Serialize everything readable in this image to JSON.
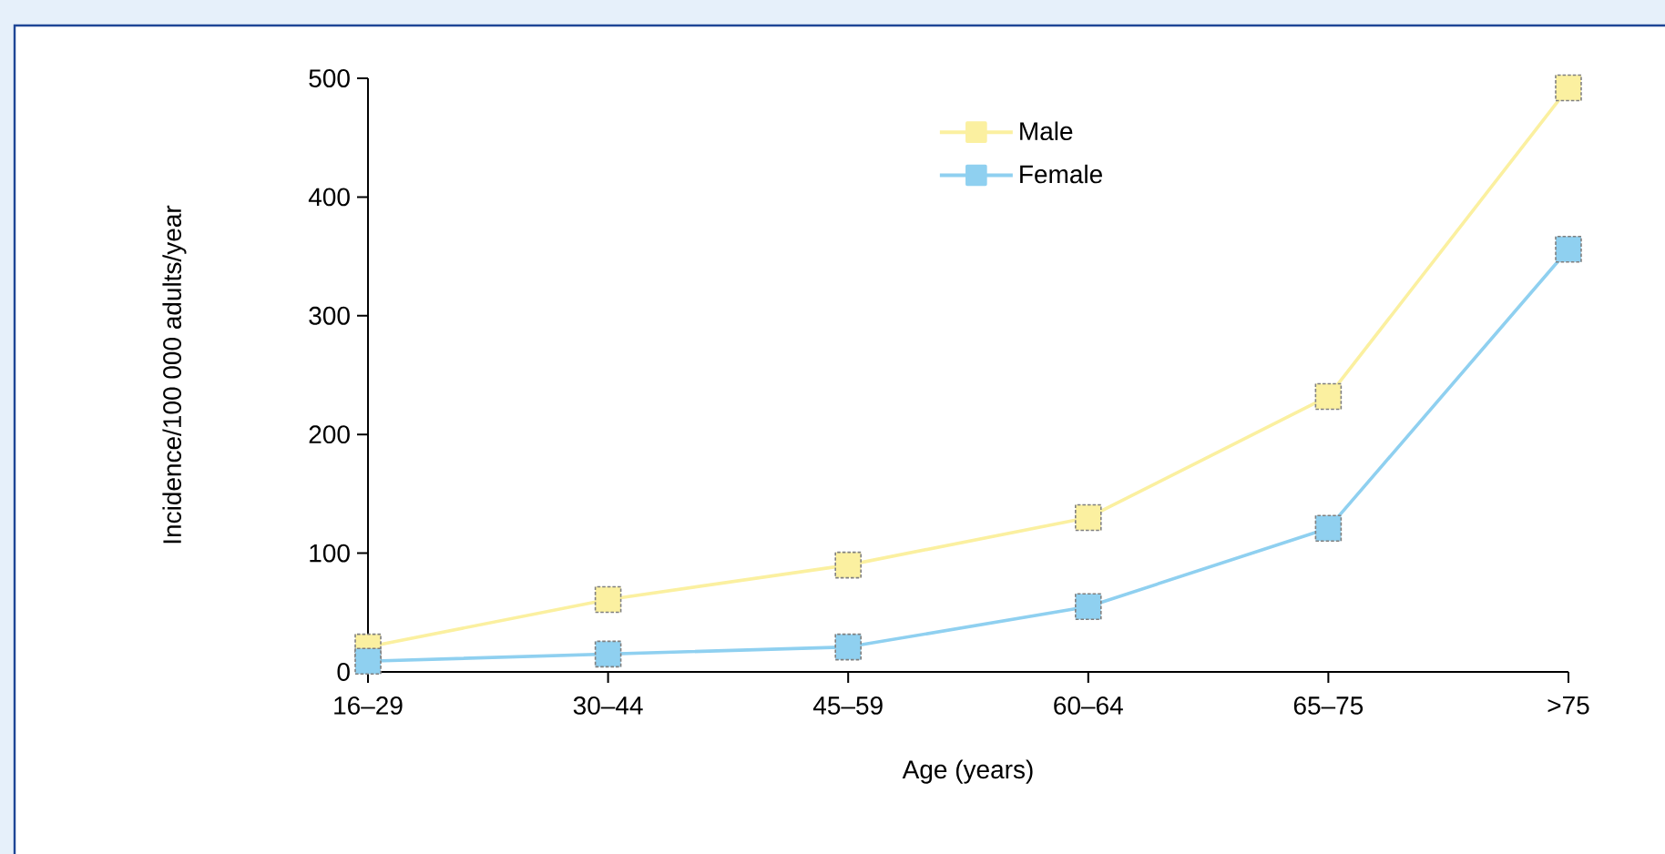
{
  "chart_data": {
    "type": "line",
    "xlabel": "Age (years)",
    "ylabel": "Incidence/100 000 adults/year",
    "categories": [
      "16–29",
      "30–44",
      "45–59",
      "60–64",
      "65–75",
      ">75"
    ],
    "series": [
      {
        "name": "Male",
        "color": "#fbf0a0",
        "values": [
          21,
          61,
          90,
          130,
          232,
          492
        ]
      },
      {
        "name": "Female",
        "color": "#8fd0f0",
        "values": [
          9,
          15,
          21,
          55,
          121,
          356
        ]
      }
    ],
    "ylim": [
      0,
      500
    ],
    "yticks": [
      0,
      100,
      200,
      300,
      400,
      500
    ],
    "legend": "top right",
    "marker": "square",
    "line_style": "solid"
  }
}
